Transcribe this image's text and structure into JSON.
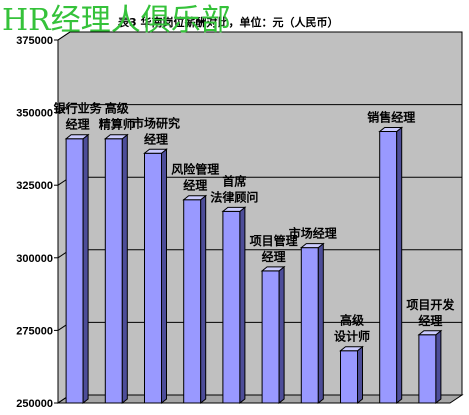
{
  "watermark": "HR经理人俱乐部",
  "chart_data": {
    "type": "bar",
    "title": "表3 华南岗位薪酬对比，单位：元（人民币）",
    "categories": [
      "银行业务经理",
      "高级精算师",
      "市场研究经理",
      "风险管理经理",
      "首席法律顾问",
      "项目管理经理",
      "市场经理",
      "高级设计师",
      "销售经理",
      "项目开发经理"
    ],
    "label_lines": [
      [
        "银行业务",
        "经理"
      ],
      [
        "高级",
        "精算师"
      ],
      [
        "市场研究",
        "经理"
      ],
      [
        "风险管理",
        "经理"
      ],
      [
        "首席",
        "法律顾问"
      ],
      [
        "项目管理",
        "经理"
      ],
      [
        "市场经理"
      ],
      [
        "高级",
        "设计师"
      ],
      [
        "销售经理"
      ],
      [
        "项目开发",
        "经理"
      ]
    ],
    "values": [
      341000,
      341000,
      336000,
      320000,
      316000,
      295500,
      303500,
      268000,
      343500,
      273500
    ],
    "ylim": [
      250000,
      375000
    ],
    "yticks": [
      "250000",
      "275000",
      "300000",
      "325000",
      "350000",
      "375000"
    ],
    "xlabel": "",
    "ylabel": "",
    "grid": true,
    "colors": {
      "bar_front": "#9999ff",
      "bar_side": "#4d4d99",
      "bar_top": "#ccccff",
      "plot_back": "#c0c0c0",
      "plot_floor": "#a6a6a6",
      "gridline": "#000000"
    }
  }
}
